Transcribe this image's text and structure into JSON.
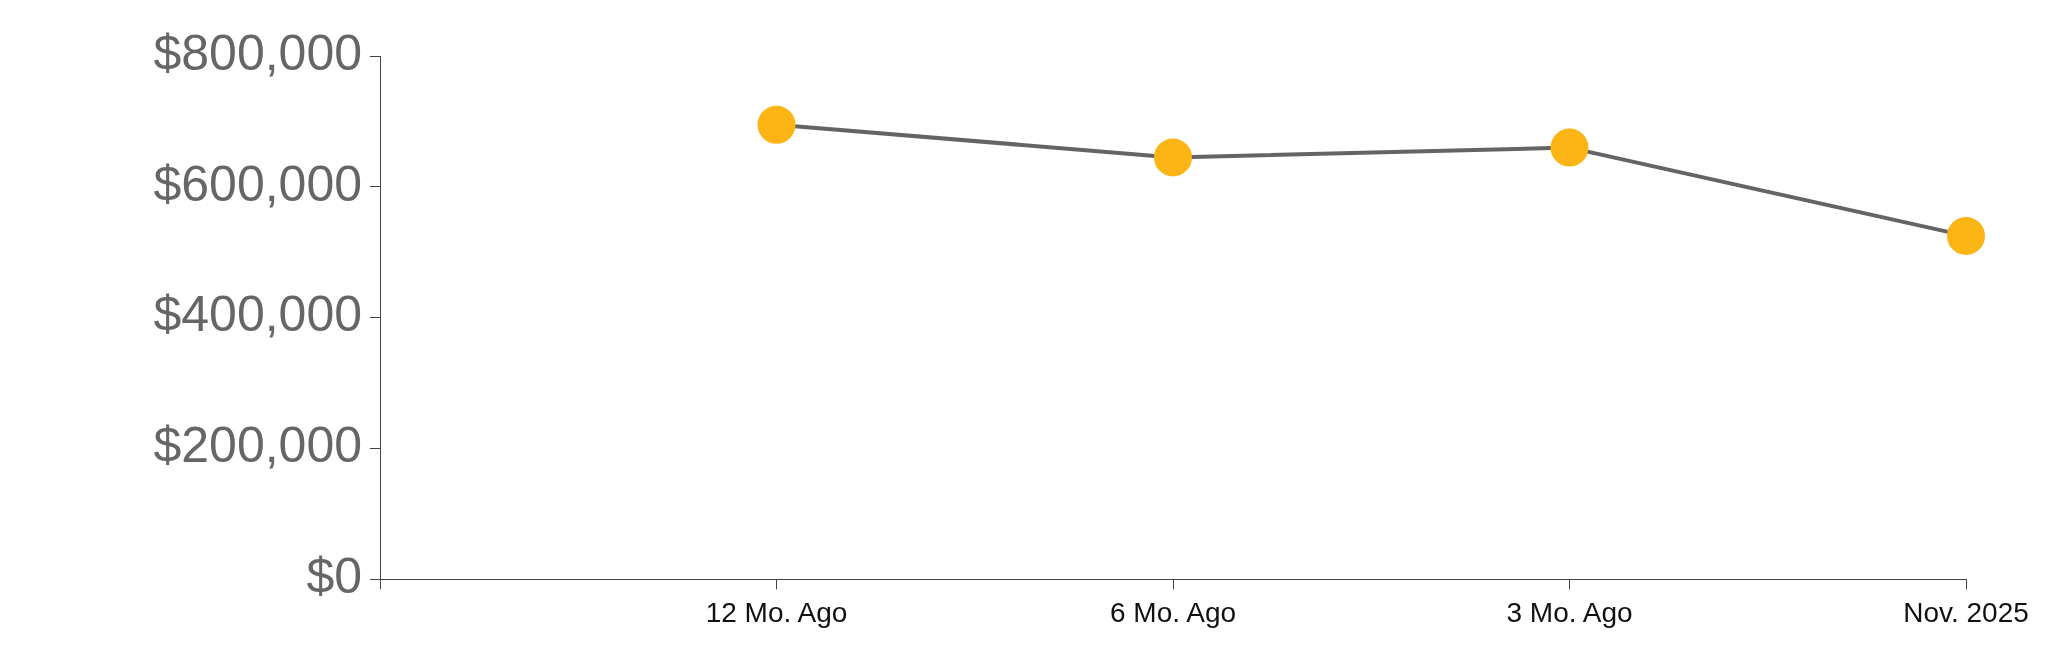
{
  "chart_data": {
    "type": "line",
    "categories": [
      null,
      "12 Mo. Ago",
      "6 Mo. Ago",
      "3 Mo. Ago",
      "Nov. 2025"
    ],
    "series": [
      {
        "color": "#fdb515",
        "values": [
          null,
          695000,
          645000,
          660000,
          525000
        ]
      }
    ],
    "ylim": [
      0,
      800000
    ],
    "yticks": [
      {
        "value": 0,
        "label": "$0"
      },
      {
        "value": 200000,
        "label": "$200,000"
      },
      {
        "value": 400000,
        "label": "$400,000"
      },
      {
        "value": 600000,
        "label": "$600,000"
      },
      {
        "value": 800000,
        "label": "$800,000"
      }
    ],
    "grid": false,
    "legend": false,
    "marker": "circle",
    "line_style": "solid"
  }
}
